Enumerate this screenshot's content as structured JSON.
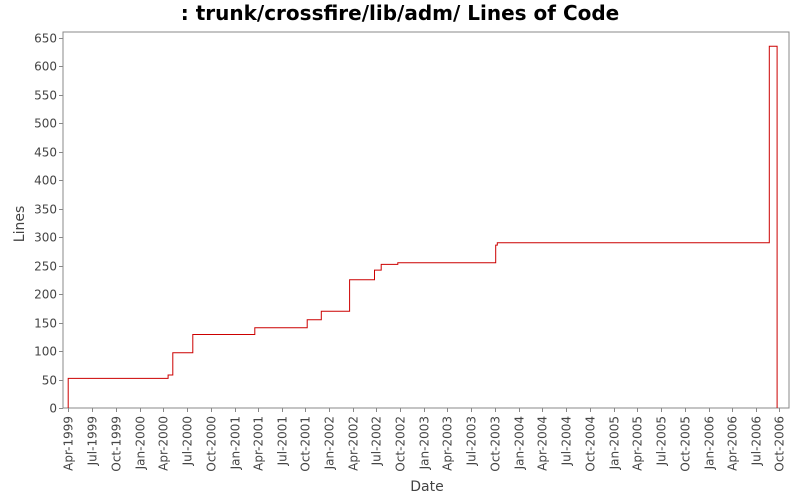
{
  "chart_data": {
    "type": "line",
    "step": true,
    "title": ": trunk/crossfire/lib/adm/ Lines of Code",
    "xlabel": "Date",
    "ylabel": "Lines",
    "line_color": "#cc0000",
    "background": "#ffffff",
    "ylim": [
      0,
      660
    ],
    "yticks": [
      0,
      50,
      100,
      150,
      200,
      250,
      300,
      350,
      400,
      450,
      500,
      550,
      600,
      650
    ],
    "xlim": [
      "1999-03-12",
      "2006-11-07"
    ],
    "xticks": [
      "1999-04-01",
      "1999-07-01",
      "1999-10-01",
      "2000-01-01",
      "2000-04-01",
      "2000-07-01",
      "2000-10-01",
      "2001-01-01",
      "2001-04-01",
      "2001-07-01",
      "2001-10-01",
      "2002-01-01",
      "2002-04-01",
      "2002-07-01",
      "2002-10-01",
      "2003-01-01",
      "2003-04-01",
      "2003-07-01",
      "2003-10-01",
      "2004-01-01",
      "2004-04-01",
      "2004-07-01",
      "2004-10-01",
      "2005-01-01",
      "2005-04-01",
      "2005-07-01",
      "2005-10-01",
      "2006-01-01",
      "2006-04-01",
      "2006-07-01",
      "2006-10-01"
    ],
    "xtick_labels": [
      "Apr-1999",
      "Jul-1999",
      "Oct-1999",
      "Jan-2000",
      "Apr-2000",
      "Jul-2000",
      "Oct-2000",
      "Jan-2001",
      "Apr-2001",
      "Jul-2001",
      "Oct-2001",
      "Jan-2002",
      "Apr-2002",
      "Jul-2002",
      "Oct-2002",
      "Jan-2003",
      "Apr-2003",
      "Jul-2003",
      "Oct-2003",
      "Jan-2004",
      "Apr-2004",
      "Jul-2004",
      "Oct-2004",
      "Jan-2005",
      "Apr-2005",
      "Jul-2005",
      "Oct-2005",
      "Jan-2006",
      "Apr-2006",
      "Jul-2006",
      "Oct-2006"
    ],
    "series": [
      {
        "x": [
          "1999-04-01",
          "2000-04-20",
          "2000-05-08",
          "2000-07-24",
          "2001-03-20",
          "2001-10-08",
          "2001-12-01",
          "2002-03-20",
          "2002-06-24",
          "2002-07-20",
          "2002-09-22",
          "2003-10-04",
          "2003-10-10",
          "2006-08-23",
          "2006-09-22"
        ],
        "y": [
          52,
          58,
          97,
          129,
          141,
          155,
          170,
          225,
          242,
          252,
          255,
          286,
          290,
          635,
          0
        ]
      }
    ]
  }
}
